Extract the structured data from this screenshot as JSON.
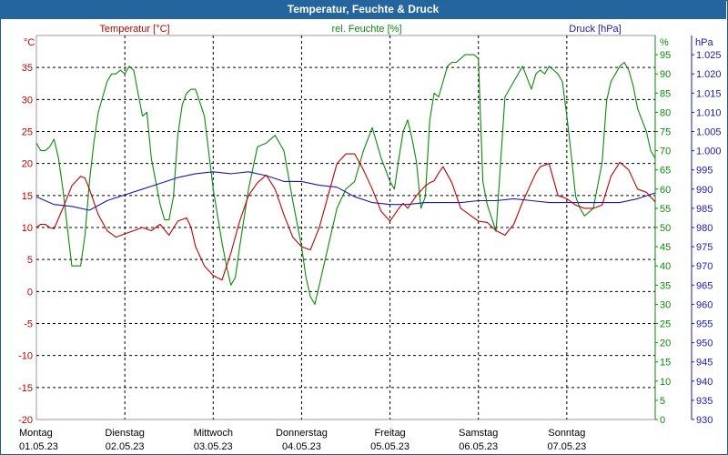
{
  "chart_data": {
    "type": "line",
    "title": "Temperatur, Feuchte & Druck",
    "series": [
      {
        "name": "Temperatur [°C]",
        "axis": "left",
        "color": "#c00000",
        "x": [
          0,
          0.05,
          0.1,
          0.15,
          0.2,
          0.3,
          0.4,
          0.5,
          0.55,
          0.6,
          0.7,
          0.8,
          0.9,
          1.0,
          1.1,
          1.2,
          1.3,
          1.4,
          1.5,
          1.6,
          1.7,
          1.75,
          1.8,
          1.9,
          2.0,
          2.1,
          2.2,
          2.3,
          2.35,
          2.4,
          2.5,
          2.6,
          2.7,
          2.8,
          2.9,
          3.0,
          3.1,
          3.2,
          3.3,
          3.4,
          3.5,
          3.6,
          3.7,
          3.8,
          3.9,
          4.0,
          4.1,
          4.15,
          4.2,
          4.3,
          4.4,
          4.45,
          4.5,
          4.55,
          4.6,
          4.7,
          4.8,
          4.9,
          5.0,
          5.1,
          5.2,
          5.3,
          5.4,
          5.5,
          5.6,
          5.65,
          5.7,
          5.8,
          5.9,
          6.0,
          6.1,
          6.2,
          6.3,
          6.4,
          6.5,
          6.6,
          6.7,
          6.8,
          6.9,
          7.0
        ],
        "y": [
          10,
          10.5,
          10.5,
          10,
          9.8,
          13,
          16.5,
          18,
          17.7,
          16,
          12,
          9.5,
          8.5,
          9,
          9.5,
          10,
          9.5,
          10.5,
          8.8,
          11,
          11.5,
          10,
          7,
          4,
          2.5,
          1.8,
          6,
          11,
          13,
          15,
          17,
          18.2,
          16,
          12,
          8.5,
          7,
          6.5,
          10,
          15,
          20,
          21.5,
          21.5,
          19,
          16,
          12.5,
          11,
          13,
          13.8,
          13,
          15,
          16.5,
          17,
          17.3,
          18.5,
          19.5,
          17,
          13,
          12,
          11,
          10.8,
          9.5,
          8.8,
          10.5,
          14,
          17,
          18.5,
          19.5,
          20,
          15,
          14.5,
          13.5,
          13,
          13,
          13.5,
          18,
          20.2,
          19,
          16,
          15.5,
          14
        ]
      },
      {
        "name": "rel. Feuchte [%]",
        "axis": "right1",
        "color": "#0a8a0a",
        "x": [
          0,
          0.05,
          0.1,
          0.15,
          0.2,
          0.25,
          0.3,
          0.35,
          0.4,
          0.5,
          0.55,
          0.6,
          0.65,
          0.7,
          0.8,
          0.85,
          0.9,
          0.95,
          1.0,
          1.05,
          1.1,
          1.15,
          1.2,
          1.25,
          1.3,
          1.4,
          1.45,
          1.5,
          1.55,
          1.6,
          1.65,
          1.7,
          1.75,
          1.8,
          1.9,
          2.0,
          2.1,
          2.15,
          2.2,
          2.25,
          2.3,
          2.4,
          2.5,
          2.6,
          2.7,
          2.8,
          2.9,
          3.0,
          3.05,
          3.1,
          3.15,
          3.2,
          3.3,
          3.4,
          3.5,
          3.6,
          3.7,
          3.8,
          3.9,
          4.0,
          4.05,
          4.1,
          4.15,
          4.2,
          4.25,
          4.3,
          4.35,
          4.4,
          4.45,
          4.5,
          4.55,
          4.6,
          4.65,
          4.7,
          4.75,
          4.8,
          4.85,
          4.9,
          4.95,
          5.0,
          5.05,
          5.1,
          5.2,
          5.3,
          5.4,
          5.5,
          5.6,
          5.65,
          5.7,
          5.75,
          5.8,
          5.85,
          5.9,
          5.95,
          6.0,
          6.05,
          6.1,
          6.15,
          6.2,
          6.3,
          6.4,
          6.45,
          6.5,
          6.55,
          6.6,
          6.65,
          6.7,
          6.75,
          6.8,
          6.85,
          6.9,
          6.95,
          7.0
        ],
        "y": [
          72,
          70,
          70,
          71,
          73,
          68,
          60,
          50,
          40,
          40,
          48,
          62,
          72,
          80,
          88,
          90,
          90,
          91,
          90,
          92,
          91,
          85,
          79,
          80,
          68,
          56,
          52,
          52,
          58,
          74,
          82,
          85,
          86,
          86,
          79,
          60,
          46,
          40,
          35,
          37,
          45,
          60,
          71,
          72,
          74,
          70,
          57,
          45,
          37,
          32,
          30,
          35,
          45,
          55,
          60,
          62,
          70,
          76,
          68,
          62,
          60,
          68,
          75,
          78,
          73,
          67,
          55,
          58,
          78,
          85,
          84,
          88,
          92,
          93,
          93,
          94,
          95,
          95,
          95,
          94,
          62,
          56,
          49,
          84,
          88,
          92,
          86,
          90,
          91,
          90,
          92,
          91,
          90,
          88,
          79,
          69,
          58,
          55,
          53,
          55,
          67,
          83,
          88,
          90,
          92,
          93,
          91,
          87,
          81,
          78,
          75,
          70,
          68
        ]
      },
      {
        "name": "Druck [hPa]",
        "axis": "right2",
        "color": "#1a1ab0",
        "x": [
          0,
          0.2,
          0.4,
          0.6,
          0.8,
          1.0,
          1.2,
          1.4,
          1.6,
          1.8,
          2.0,
          2.2,
          2.4,
          2.6,
          2.8,
          3.0,
          3.2,
          3.4,
          3.6,
          3.8,
          4.0,
          4.2,
          4.4,
          4.6,
          4.8,
          5.0,
          5.2,
          5.4,
          5.6,
          5.8,
          6.0,
          6.2,
          6.4,
          6.6,
          6.8,
          7.0
        ],
        "y": [
          988,
          986,
          985.5,
          984.5,
          987,
          988.5,
          990,
          991.5,
          993,
          994,
          994.5,
          994,
          994.5,
          993.5,
          992,
          992,
          991,
          990.5,
          988,
          986.5,
          986,
          986,
          986.5,
          986.5,
          986.5,
          987,
          987,
          987.5,
          987,
          986.5,
          986.5,
          986.5,
          986.5,
          986.5,
          987.5,
          989
        ]
      }
    ],
    "x_ticks": [
      {
        "day": "Montag",
        "date": "01.05.23"
      },
      {
        "day": "Dienstag",
        "date": "02.05.23"
      },
      {
        "day": "Mittwoch",
        "date": "03.05.23"
      },
      {
        "day": "Donnerstag",
        "date": "04.05.23"
      },
      {
        "day": "Freitag",
        "date": "05.05.23"
      },
      {
        "day": "Samstag",
        "date": "06.05.23"
      },
      {
        "day": "Sonntag",
        "date": "07.05.23"
      }
    ],
    "xlim": [
      0,
      7
    ],
    "axes": {
      "left": {
        "unit": "°C",
        "ylim": [
          -20,
          40
        ],
        "ticks": [
          "-20",
          "-15",
          "-10",
          "-5",
          "0",
          "5",
          "10",
          "15",
          "20",
          "25",
          "30",
          "35"
        ],
        "color": "#c00000"
      },
      "right1": {
        "unit": "%",
        "ylim": [
          0,
          100
        ],
        "ticks": [
          "0",
          "5",
          "10",
          "15",
          "20",
          "25",
          "30",
          "35",
          "40",
          "45",
          "50",
          "55",
          "60",
          "65",
          "70",
          "75",
          "80",
          "85",
          "90",
          "95"
        ],
        "color": "#0a8a0a"
      },
      "right2": {
        "unit": "hPa",
        "ylim": [
          930,
          1030
        ],
        "ticks": [
          "930",
          "935",
          "940",
          "945",
          "950",
          "955",
          "960",
          "965",
          "970",
          "975",
          "980",
          "985",
          "990",
          "995",
          "1.000",
          "1.005",
          "1.010",
          "1.015",
          "1.020",
          "1.025"
        ],
        "color": "#1a1ab0"
      }
    },
    "grid": true
  }
}
